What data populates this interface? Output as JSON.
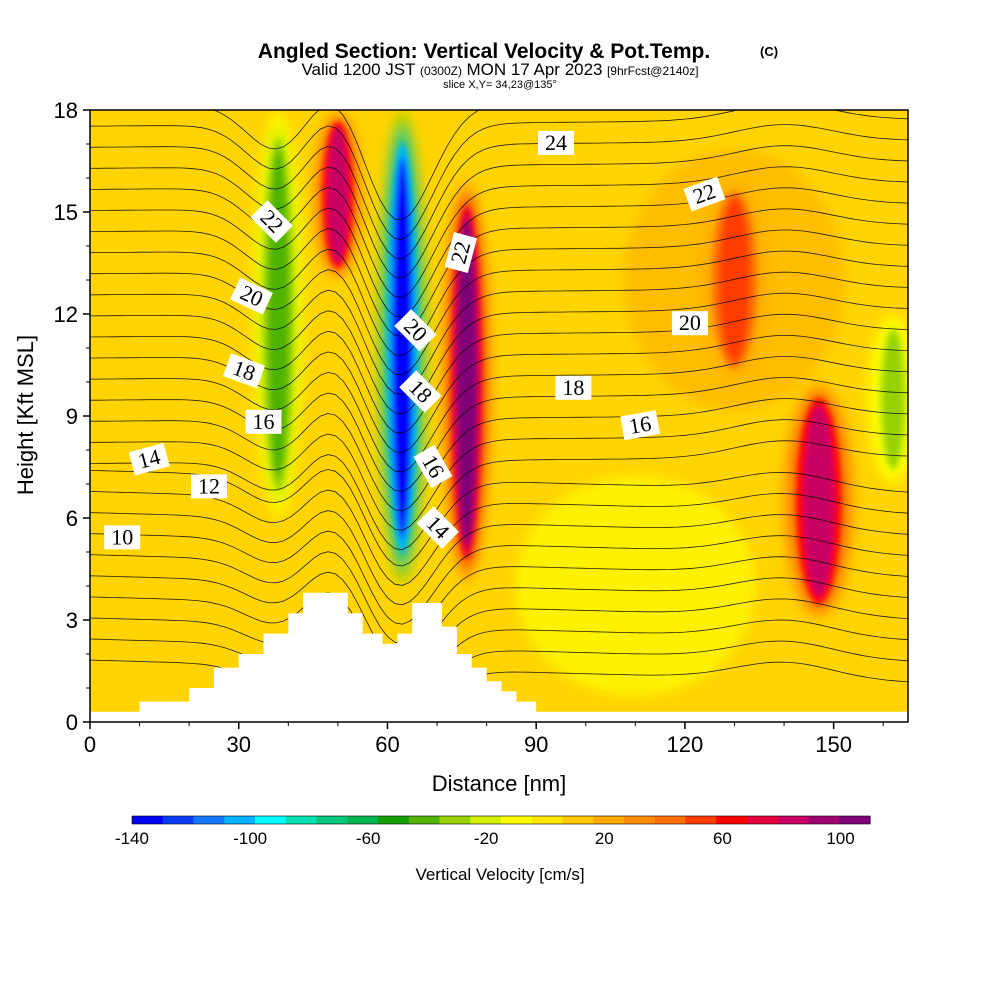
{
  "chart_data": {
    "type": "heatmap",
    "title": "Angled Section: Vertical Velocity & Pot.Temp.",
    "title_mark": "(C)",
    "subtitle_parts": {
      "a": "Valid 1200 JST",
      "b": "(0300Z)",
      "c": "MON 17 Apr 2023",
      "d": "[9hrFcst@2140z]"
    },
    "slice_label": "slice X,Y= 34,23@135°",
    "xlabel": "Distance [nm]",
    "ylabel": "Height [Kft MSL]",
    "xlim": [
      0,
      165
    ],
    "ylim": [
      0,
      18
    ],
    "x_ticks": [
      0,
      30,
      60,
      90,
      120,
      150
    ],
    "y_ticks": [
      0,
      3,
      6,
      9,
      12,
      15,
      18
    ],
    "colorbar": {
      "label": "Vertical Velocity [cm/s]",
      "range": [
        -140,
        110
      ],
      "tick_values": [
        -140,
        -100,
        -60,
        -20,
        20,
        60,
        100
      ],
      "tick_labels": [
        "-140",
        "-100",
        "-60",
        "-20",
        "20",
        "60",
        "100"
      ],
      "colors": [
        "#0000ff",
        "#0a3cff",
        "#1478ff",
        "#00b4ff",
        "#00ffff",
        "#00e0b0",
        "#00c878",
        "#00b450",
        "#14a000",
        "#50b400",
        "#96d200",
        "#d2f000",
        "#ffff00",
        "#ffe600",
        "#ffc800",
        "#ffaa00",
        "#ff8c00",
        "#ff6e00",
        "#ff3c00",
        "#ff0000",
        "#e6003c",
        "#c80064",
        "#a0006e",
        "#800078"
      ]
    },
    "velocity_features": [
      {
        "kind": "downdraft",
        "x": 38,
        "y_range": [
          6,
          18
        ],
        "peak": -40
      },
      {
        "kind": "updraft",
        "x": 50,
        "y_range": [
          13,
          18
        ],
        "peak": 80
      },
      {
        "kind": "downdraft",
        "x": 63,
        "y_range": [
          4,
          18
        ],
        "peak": -140
      },
      {
        "kind": "updraft",
        "x": 76,
        "y_range": [
          4,
          16
        ],
        "peak": 100
      },
      {
        "kind": "updraft",
        "x": 130,
        "y_range": [
          10,
          16
        ],
        "peak": 50
      },
      {
        "kind": "updraft",
        "x": 147,
        "y_range": [
          3,
          10
        ],
        "peak": 80
      },
      {
        "kind": "downdraft",
        "x": 162,
        "y_range": [
          7,
          12
        ],
        "peak": -30
      }
    ],
    "terrain": [
      [
        0,
        0.3
      ],
      [
        10,
        0.3
      ],
      [
        10,
        0.6
      ],
      [
        20,
        0.6
      ],
      [
        20,
        1.0
      ],
      [
        25,
        1.0
      ],
      [
        25,
        1.6
      ],
      [
        30,
        1.6
      ],
      [
        30,
        2.0
      ],
      [
        35,
        2.0
      ],
      [
        35,
        2.6
      ],
      [
        40,
        2.6
      ],
      [
        40,
        3.2
      ],
      [
        43,
        3.2
      ],
      [
        43,
        3.8
      ],
      [
        52,
        3.8
      ],
      [
        52,
        3.2
      ],
      [
        55,
        3.2
      ],
      [
        55,
        2.6
      ],
      [
        59,
        2.6
      ],
      [
        59,
        2.3
      ],
      [
        62,
        2.3
      ],
      [
        62,
        2.6
      ],
      [
        65,
        2.6
      ],
      [
        65,
        3.5
      ],
      [
        71,
        3.5
      ],
      [
        71,
        2.8
      ],
      [
        74,
        2.8
      ],
      [
        74,
        2.0
      ],
      [
        77,
        2.0
      ],
      [
        77,
        1.6
      ],
      [
        80,
        1.6
      ],
      [
        80,
        1.2
      ],
      [
        83,
        1.2
      ],
      [
        83,
        0.9
      ],
      [
        86,
        0.9
      ],
      [
        86,
        0.6
      ],
      [
        90,
        0.6
      ],
      [
        90,
        0.3
      ],
      [
        165,
        0.3
      ]
    ],
    "isentrope_labels": [
      {
        "text": "24",
        "x": 94,
        "y": 17.0,
        "angle": 0
      },
      {
        "text": "22",
        "x": 124,
        "y": 15.5,
        "angle": -20
      },
      {
        "text": "22",
        "x": 36.5,
        "y": 14.7,
        "angle": 45
      },
      {
        "text": "22",
        "x": 75,
        "y": 13.8,
        "angle": -75
      },
      {
        "text": "20",
        "x": 32.5,
        "y": 12.5,
        "angle": 25
      },
      {
        "text": "20",
        "x": 121,
        "y": 11.7,
        "angle": 0
      },
      {
        "text": "20",
        "x": 65.5,
        "y": 11.5,
        "angle": 45
      },
      {
        "text": "18",
        "x": 31,
        "y": 10.3,
        "angle": 20
      },
      {
        "text": "18",
        "x": 97.5,
        "y": 9.8,
        "angle": 0
      },
      {
        "text": "18",
        "x": 66.5,
        "y": 9.7,
        "angle": 45
      },
      {
        "text": "16",
        "x": 35,
        "y": 8.8,
        "angle": 0
      },
      {
        "text": "16",
        "x": 111,
        "y": 8.7,
        "angle": -10
      },
      {
        "text": "16",
        "x": 69,
        "y": 7.5,
        "angle": 60
      },
      {
        "text": "14",
        "x": 12,
        "y": 7.7,
        "angle": -15
      },
      {
        "text": "12",
        "x": 24,
        "y": 6.9,
        "angle": 0
      },
      {
        "text": "14",
        "x": 70,
        "y": 5.7,
        "angle": 45
      },
      {
        "text": "10",
        "x": 6.5,
        "y": 5.4,
        "angle": 0
      }
    ]
  }
}
